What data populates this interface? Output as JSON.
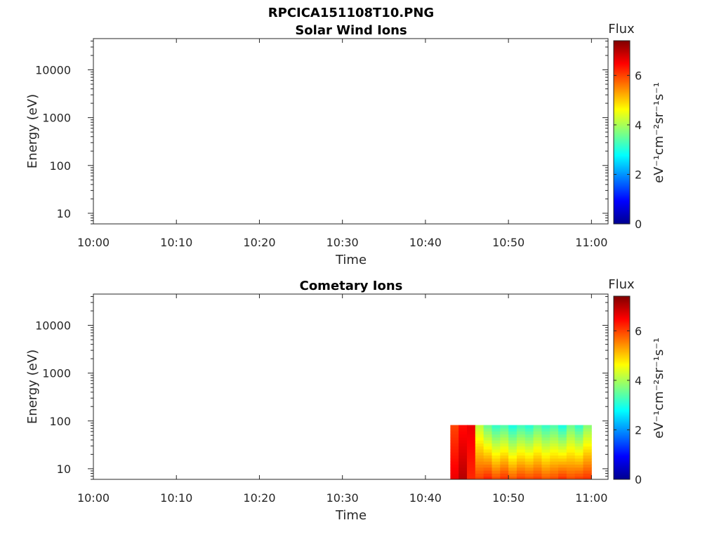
{
  "figure": {
    "title": "RPCICA151108T10.PNG"
  },
  "chart_data": [
    {
      "type": "heatmap",
      "title": "Solar Wind Ions",
      "xlabel": "Time",
      "ylabel": "Energy (eV)",
      "x_ticks": [
        "10:00",
        "10:10",
        "10:20",
        "10:30",
        "10:40",
        "10:50",
        "11:00"
      ],
      "x_range": [
        "10:00",
        "11:02"
      ],
      "y_scale": "log",
      "y_ticks": [
        10,
        100,
        1000,
        10000
      ],
      "y_tick_labels": [
        "10",
        "100",
        "1000",
        "10000"
      ],
      "y_range": [
        6,
        45000
      ],
      "colorbar": {
        "title": "Flux",
        "label": "eV⁻¹cm⁻²sr⁻¹s⁻¹",
        "ticks": [
          0,
          2,
          4,
          6
        ],
        "tick_labels": [
          "0",
          "2",
          "4",
          "6"
        ],
        "range": [
          0,
          7.4
        ],
        "colormap": "jet"
      },
      "data": []
    },
    {
      "type": "heatmap",
      "title": "Cometary Ions",
      "xlabel": "Time",
      "ylabel": "Energy (eV)",
      "x_ticks": [
        "10:00",
        "10:10",
        "10:20",
        "10:30",
        "10:40",
        "10:50",
        "11:00"
      ],
      "x_range": [
        "10:00",
        "11:02"
      ],
      "y_scale": "log",
      "y_ticks": [
        10,
        100,
        1000,
        10000
      ],
      "y_tick_labels": [
        "10",
        "100",
        "1000",
        "10000"
      ],
      "y_range": [
        6,
        45000
      ],
      "colorbar": {
        "title": "Flux",
        "label": "eV⁻¹cm⁻²sr⁻¹s⁻¹",
        "ticks": [
          0,
          2,
          4,
          6
        ],
        "tick_labels": [
          "0",
          "2",
          "4",
          "6"
        ],
        "range": [
          0,
          7.4
        ],
        "colormap": "jet"
      },
      "data": {
        "time_range": [
          "10:43",
          "11:00"
        ],
        "energy_range_eV": [
          6,
          82
        ],
        "flux_range": [
          2.5,
          7.2
        ],
        "segments": [
          {
            "t0": "10:43",
            "t1": "10:44",
            "flux_low": 6.6,
            "flux_high": 6.0
          },
          {
            "t0": "10:44",
            "t1": "10:45",
            "flux_low": 7.0,
            "flux_high": 6.4
          },
          {
            "t0": "10:45",
            "t1": "10:46",
            "flux_low": 6.2,
            "flux_high": 6.6
          },
          {
            "t0": "10:46",
            "t1": "10:47",
            "flux_low": 6.0,
            "flux_high": 4.2
          },
          {
            "t0": "10:47",
            "t1": "10:48",
            "flux_low": 6.2,
            "flux_high": 3.6
          },
          {
            "t0": "10:48",
            "t1": "10:49",
            "flux_low": 5.9,
            "flux_high": 3.2
          },
          {
            "t0": "10:49",
            "t1": "10:50",
            "flux_low": 6.1,
            "flux_high": 3.4
          },
          {
            "t0": "10:50",
            "t1": "10:51",
            "flux_low": 5.8,
            "flux_high": 3.0
          },
          {
            "t0": "10:51",
            "t1": "10:52",
            "flux_low": 6.0,
            "flux_high": 3.3
          },
          {
            "t0": "10:52",
            "t1": "10:53",
            "flux_low": 5.9,
            "flux_high": 3.1
          },
          {
            "t0": "10:53",
            "t1": "10:54",
            "flux_low": 6.0,
            "flux_high": 3.5
          },
          {
            "t0": "10:54",
            "t1": "10:55",
            "flux_low": 5.8,
            "flux_high": 3.2
          },
          {
            "t0": "10:55",
            "t1": "10:56",
            "flux_low": 5.9,
            "flux_high": 3.4
          },
          {
            "t0": "10:56",
            "t1": "10:57",
            "flux_low": 6.1,
            "flux_high": 3.0
          },
          {
            "t0": "10:57",
            "t1": "10:58",
            "flux_low": 5.9,
            "flux_high": 3.6
          },
          {
            "t0": "10:58",
            "t1": "10:59",
            "flux_low": 6.0,
            "flux_high": 3.2
          },
          {
            "t0": "10:59",
            "t1": "11:00",
            "flux_low": 6.1,
            "flux_high": 3.8
          }
        ]
      }
    }
  ]
}
